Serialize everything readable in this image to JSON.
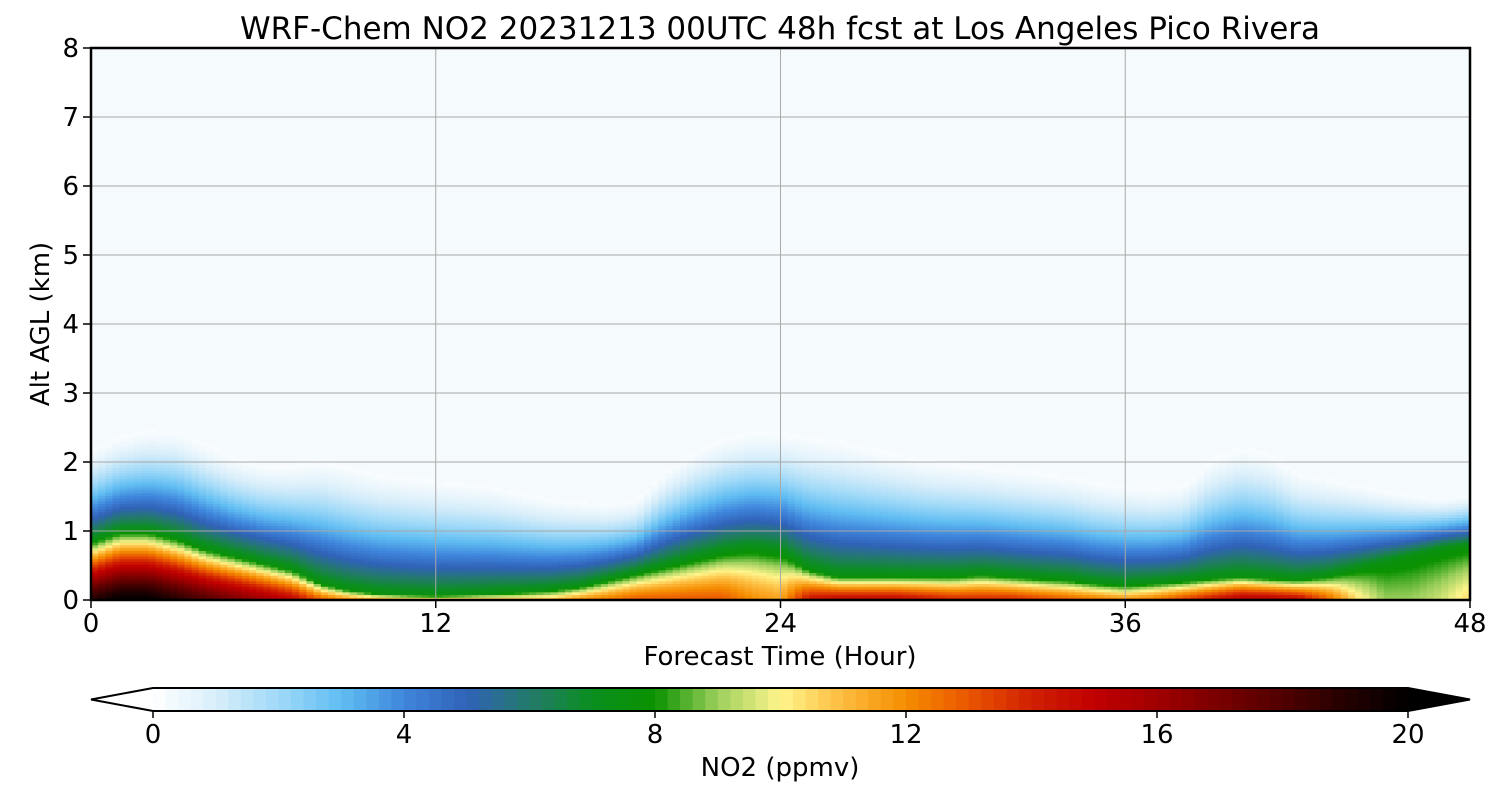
{
  "chart_data": {
    "type": "heatmap",
    "title": "WRF-Chem NO2  20231213 00UTC 48h fcst at Los Angeles Pico Rivera",
    "xlabel": "Forecast Time (Hour)",
    "ylabel": "Alt AGL (km)",
    "xlim": [
      0,
      48
    ],
    "ylim": [
      0,
      8
    ],
    "x_ticks": [
      "0",
      "12",
      "24",
      "36",
      "48"
    ],
    "y_ticks": [
      "0",
      "1",
      "2",
      "3",
      "4",
      "5",
      "6",
      "7",
      "8"
    ],
    "grid": true,
    "colorbar": {
      "label": "NO2  (ppmv)",
      "ticks": [
        "0",
        "4",
        "8",
        "12",
        "16",
        "20"
      ],
      "range": [
        0,
        20
      ],
      "extend": "both",
      "orientation": "horizontal",
      "colormap": [
        [
          0,
          "#ffffff"
        ],
        [
          1,
          "#d8eefa"
        ],
        [
          2,
          "#9fd9f8"
        ],
        [
          3,
          "#60bdf2"
        ],
        [
          4,
          "#3f86dc"
        ],
        [
          5,
          "#3062b8"
        ],
        [
          6,
          "#237a6a"
        ],
        [
          7,
          "#0b8f1f"
        ],
        [
          8,
          "#0a9200"
        ],
        [
          9,
          "#9ccf5c"
        ],
        [
          10,
          "#fff58c"
        ],
        [
          11,
          "#fdbb3e"
        ],
        [
          12,
          "#f58d00"
        ],
        [
          13,
          "#ea5500"
        ],
        [
          14,
          "#d02000"
        ],
        [
          15,
          "#c00000"
        ],
        [
          16,
          "#a00000"
        ],
        [
          17,
          "#780000"
        ],
        [
          18,
          "#500000"
        ],
        [
          19,
          "#250000"
        ],
        [
          20,
          "#000000"
        ]
      ]
    },
    "background_value_color": "#f5fafd",
    "profile": {
      "description_hours": [
        0,
        1,
        2,
        3,
        4,
        5,
        6,
        7,
        8,
        9,
        10,
        11,
        12,
        13,
        14,
        15,
        16,
        17,
        18,
        19,
        20,
        21,
        22,
        23,
        24,
        25,
        26,
        27,
        28,
        29,
        30,
        31,
        32,
        33,
        34,
        35,
        36,
        37,
        38,
        39,
        40,
        41,
        42,
        43,
        44,
        45,
        46,
        47,
        48
      ],
      "surface_no2": [
        19,
        20,
        20,
        19,
        18,
        17,
        16,
        15,
        13,
        12,
        11.5,
        11,
        11,
        11,
        11,
        11,
        11,
        12,
        12.5,
        13,
        13,
        13,
        13,
        12,
        11.5,
        14.5,
        15,
        15,
        15,
        14.5,
        14,
        14,
        14,
        13.5,
        13,
        12.5,
        12,
        12.5,
        13.5,
        14.5,
        15.5,
        15.5,
        15,
        13,
        10.5,
        9,
        9,
        9.5,
        10.5
      ],
      "boundary_layer_height_km": [
        0.85,
        1.0,
        1.0,
        0.9,
        0.75,
        0.65,
        0.55,
        0.45,
        0.25,
        0.15,
        0.1,
        0.08,
        0.07,
        0.08,
        0.1,
        0.12,
        0.15,
        0.2,
        0.3,
        0.4,
        0.5,
        0.6,
        0.7,
        0.75,
        0.7,
        0.45,
        0.35,
        0.35,
        0.35,
        0.35,
        0.35,
        0.38,
        0.35,
        0.32,
        0.3,
        0.25,
        0.22,
        0.25,
        0.28,
        0.32,
        0.35,
        0.32,
        0.3,
        0.35,
        0.45,
        0.55,
        0.65,
        0.75,
        0.8
      ],
      "plume_top_km": [
        2.3,
        2.5,
        2.6,
        2.6,
        2.4,
        2.2,
        2.1,
        2.1,
        2.2,
        2.1,
        2.0,
        1.95,
        1.9,
        1.85,
        1.8,
        1.7,
        1.6,
        1.55,
        1.5,
        1.55,
        2.0,
        2.3,
        2.5,
        2.6,
        2.6,
        2.55,
        2.5,
        2.4,
        2.3,
        2.2,
        2.15,
        2.1,
        2.05,
        2.0,
        1.95,
        1.85,
        1.8,
        1.75,
        1.8,
        2.2,
        2.4,
        2.3,
        2.0,
        1.9,
        1.8,
        1.7,
        1.6,
        1.55,
        1.6
      ]
    }
  }
}
